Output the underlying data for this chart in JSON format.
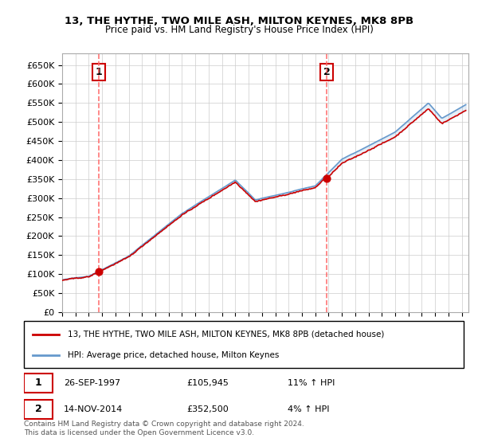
{
  "title": "13, THE HYTHE, TWO MILE ASH, MILTON KEYNES, MK8 8PB",
  "subtitle": "Price paid vs. HM Land Registry's House Price Index (HPI)",
  "ylim": [
    0,
    680000
  ],
  "yticks": [
    0,
    50000,
    100000,
    150000,
    200000,
    250000,
    300000,
    350000,
    400000,
    450000,
    500000,
    550000,
    600000,
    650000
  ],
  "xlim_start": 1995.0,
  "xlim_end": 2025.5,
  "sale1_x": 1997.74,
  "sale1_y": 105945,
  "sale2_x": 2014.87,
  "sale2_y": 352500,
  "line_color_property": "#cc0000",
  "line_color_hpi": "#6699cc",
  "legend_property": "13, THE HYTHE, TWO MILE ASH, MILTON KEYNES, MK8 8PB (detached house)",
  "legend_hpi": "HPI: Average price, detached house, Milton Keynes",
  "footnote": "Contains HM Land Registry data © Crown copyright and database right 2024.\nThis data is licensed under the Open Government Licence v3.0.",
  "background_color": "#ffffff",
  "grid_color": "#cccccc",
  "vline_color": "#ff6666"
}
